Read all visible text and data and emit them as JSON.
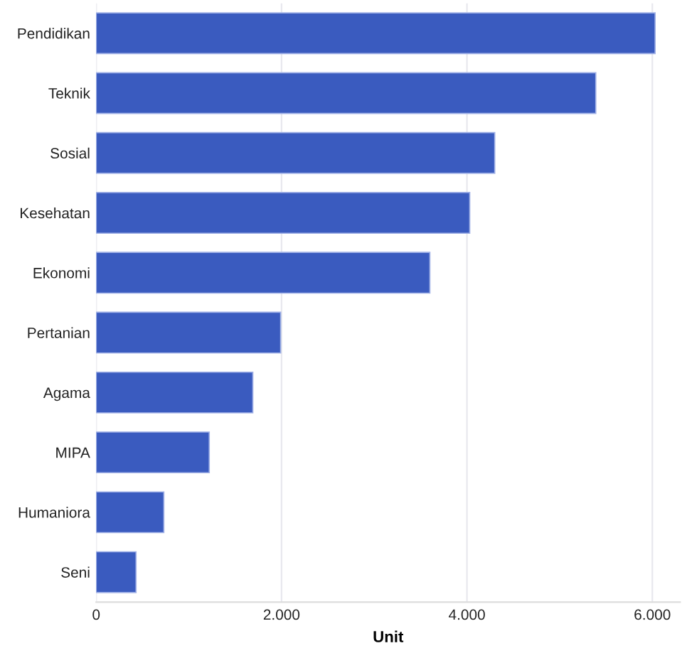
{
  "chart_data": {
    "type": "bar",
    "orientation": "horizontal",
    "xlabel": "Unit",
    "categories": [
      "Pendidikan",
      "Teknik",
      "Sosial",
      "Kesehatan",
      "Ekonomi",
      "Pertanian",
      "Agama",
      "MIPA",
      "Humaniora",
      "Seni"
    ],
    "values": [
      6030,
      5390,
      4300,
      4030,
      3600,
      1990,
      1690,
      1220,
      730,
      430
    ],
    "color": "#3a5bbf",
    "xlim": [
      0,
      6300
    ],
    "xticks": [
      0,
      {
        "value": 2000,
        "label": "2.000"
      },
      {
        "value": 4000,
        "label": "4.000"
      },
      {
        "value": 6000,
        "label": "6.000"
      }
    ],
    "grid": "x"
  }
}
